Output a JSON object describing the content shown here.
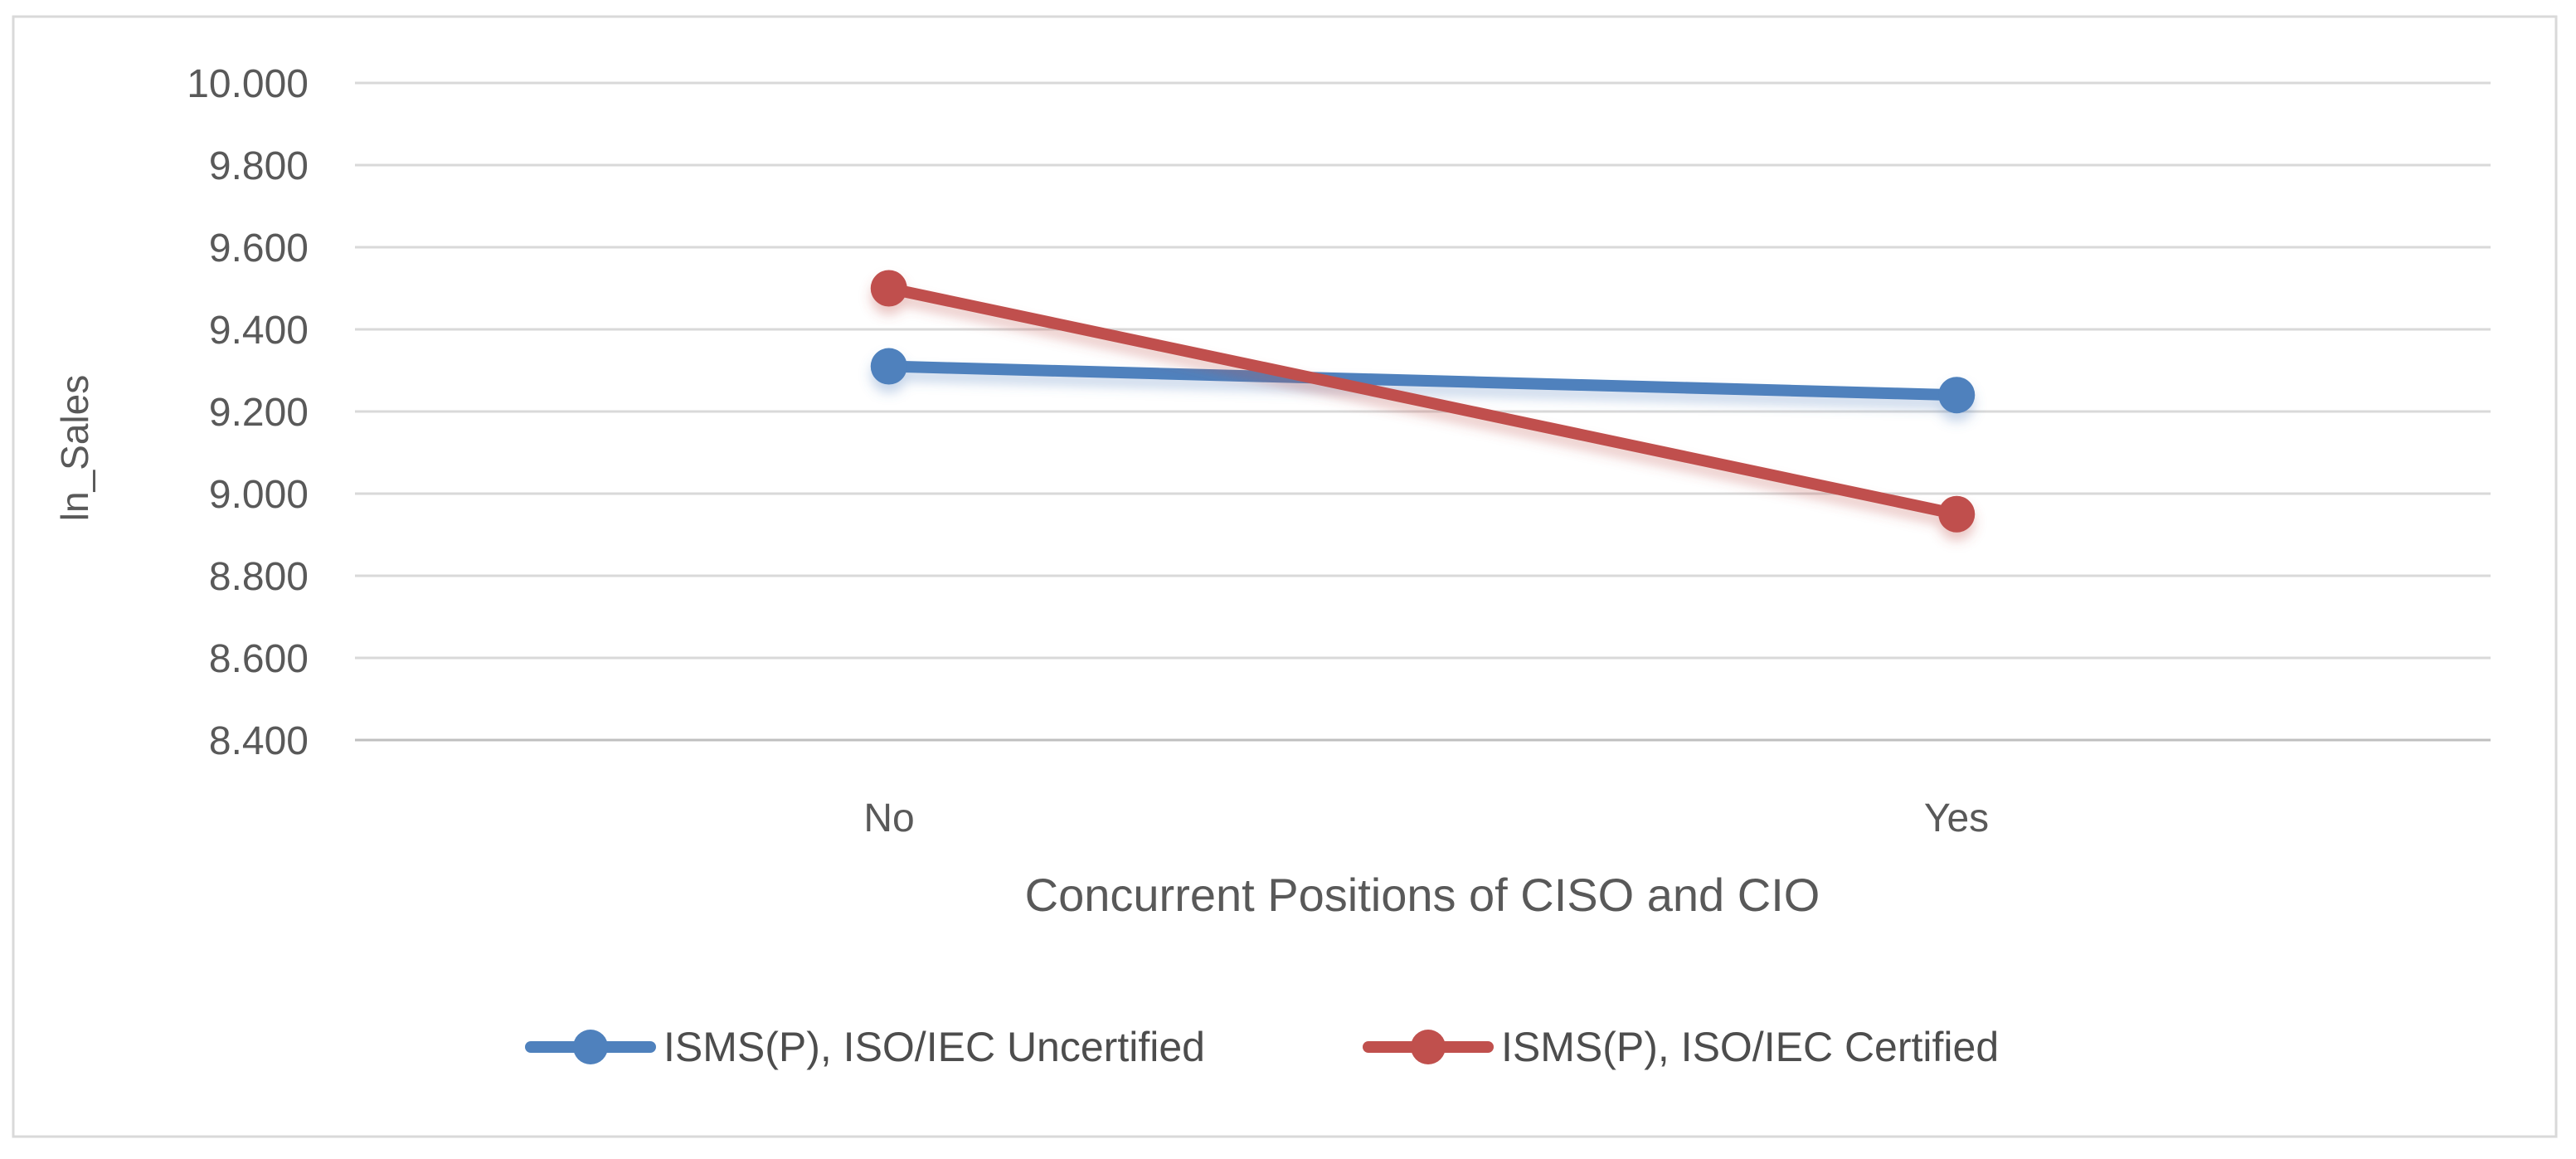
{
  "chart_data": {
    "type": "line",
    "title": "",
    "categories": [
      "No",
      "Yes"
    ],
    "series": [
      {
        "name": "ISMS(P), ISO/IEC Uncertified",
        "color": "#4F81BD",
        "values": [
          9.31,
          9.24
        ]
      },
      {
        "name": "ISMS(P), ISO/IEC Certified",
        "color": "#C0504D",
        "values": [
          9.5,
          8.95
        ]
      }
    ],
    "xlabel": "Concurrent Positions of CISO and CIO",
    "ylabel": "ln_Sales",
    "ylim": [
      8.4,
      10.0
    ],
    "ytick_step": 0.2,
    "ytick_labels": [
      "10.000",
      "9.800",
      "9.600",
      "9.400",
      "9.200",
      "9.000",
      "8.800",
      "8.600",
      "8.400"
    ],
    "grid": true,
    "legend_position": "bottom",
    "marker_style": "circle",
    "colors": {
      "gridline": "#D9D9D9",
      "axis_line": "#BFBFBF",
      "frame_border": "#D9D9D9",
      "text": "#595959",
      "background": "#FFFFFF"
    }
  }
}
